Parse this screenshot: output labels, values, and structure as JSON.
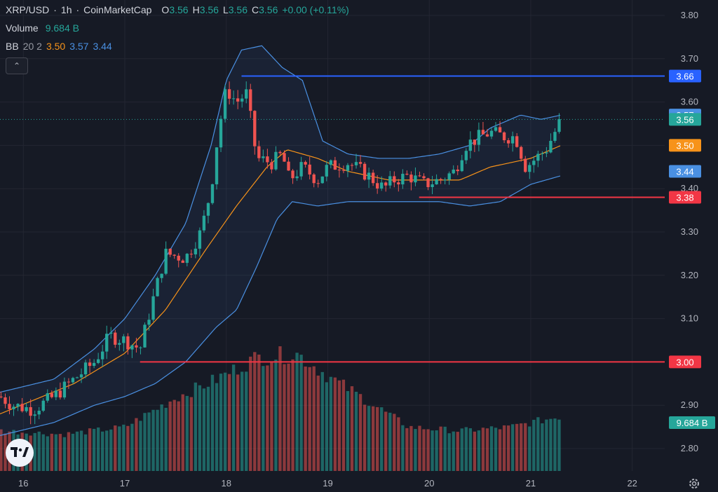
{
  "header": {
    "symbol": "XRP/USD",
    "interval": "1h",
    "source": "CoinMarketCap",
    "ohlc": [
      {
        "key": "O",
        "value": "3.56"
      },
      {
        "key": "H",
        "value": "3.56"
      },
      {
        "key": "L",
        "value": "3.56"
      },
      {
        "key": "C",
        "value": "3.56"
      }
    ],
    "change": "+0.00 (+0.11%)",
    "volume_label": "Volume",
    "volume_value": "9.684 B",
    "bb_label": "BB",
    "bb_params": "20 2",
    "bb_basis": "3.50",
    "bb_upper": "3.57",
    "bb_lower": "3.44"
  },
  "colors": {
    "background": "#161a25",
    "up": "#26a69a",
    "down": "#ef5350",
    "bb_basis": "#f7931a",
    "bb_band": "#4a90e2",
    "support": "#f23645",
    "resistance": "#2962ff",
    "axis_text": "#b2b5be"
  },
  "chart_data": {
    "type": "candlestick",
    "x_ticks": [
      {
        "label": "16",
        "day": 16
      },
      {
        "label": "17",
        "day": 17
      },
      {
        "label": "18",
        "day": 18
      },
      {
        "label": "19",
        "day": 19
      },
      {
        "label": "20",
        "day": 20
      },
      {
        "label": "21",
        "day": 21
      },
      {
        "label": "22",
        "day": 22
      }
    ],
    "xlim": [
      15.77,
      22.32
    ],
    "y_ticks": [
      "2.80",
      "2.90",
      "3.00",
      "3.10",
      "3.20",
      "3.30",
      "3.40",
      "3.50",
      "3.60",
      "3.70",
      "3.80"
    ],
    "ylim": [
      2.74,
      3.82
    ],
    "horizontal_lines": [
      {
        "name": "resistance",
        "value": 3.66,
        "label": "3.66",
        "x_start": 18.15,
        "color": "#2962ff"
      },
      {
        "name": "support-mid",
        "value": 3.38,
        "label": "3.38",
        "x_start": 19.9,
        "color": "#f23645"
      },
      {
        "name": "support-low",
        "value": 3.0,
        "label": "3.00",
        "x_start": 17.15,
        "color": "#f23645"
      }
    ],
    "price_labels": [
      {
        "name": "bb-upper",
        "value": 3.57,
        "label": "3.57",
        "color": "#4a90e2"
      },
      {
        "name": "last-price",
        "value": 3.56,
        "label": "3.56",
        "color": "#26a69a"
      },
      {
        "name": "bb-basis",
        "value": 3.5,
        "label": "3.50",
        "color": "#f7931a"
      },
      {
        "name": "bb-lower",
        "value": 3.44,
        "label": "3.44",
        "color": "#4a90e2"
      }
    ],
    "volume_label": "9.684 B",
    "anchors": {
      "close": [
        [
          15.77,
          2.92
        ],
        [
          15.9,
          2.9
        ],
        [
          16.1,
          2.89
        ],
        [
          16.3,
          2.92
        ],
        [
          16.5,
          2.96
        ],
        [
          16.7,
          3.0
        ],
        [
          16.85,
          3.06
        ],
        [
          17.0,
          3.05
        ],
        [
          17.15,
          3.03
        ],
        [
          17.25,
          3.12
        ],
        [
          17.4,
          3.25
        ],
        [
          17.6,
          3.24
        ],
        [
          17.75,
          3.3
        ],
        [
          17.85,
          3.4
        ],
        [
          17.92,
          3.53
        ],
        [
          18.0,
          3.63
        ],
        [
          18.1,
          3.6
        ],
        [
          18.2,
          3.62
        ],
        [
          18.3,
          3.47
        ],
        [
          18.45,
          3.46
        ],
        [
          18.55,
          3.48
        ],
        [
          18.62,
          3.42
        ],
        [
          18.75,
          3.45
        ],
        [
          18.9,
          3.42
        ],
        [
          19.0,
          3.45
        ],
        [
          19.2,
          3.46
        ],
        [
          19.4,
          3.43
        ],
        [
          19.55,
          3.4
        ],
        [
          19.65,
          3.42
        ],
        [
          19.8,
          3.43
        ],
        [
          19.95,
          3.41
        ],
        [
          20.1,
          3.42
        ],
        [
          20.25,
          3.44
        ],
        [
          20.35,
          3.5
        ],
        [
          20.5,
          3.52
        ],
        [
          20.6,
          3.53
        ],
        [
          20.75,
          3.52
        ],
        [
          20.85,
          3.52
        ],
        [
          20.95,
          3.45
        ],
        [
          21.05,
          3.47
        ],
        [
          21.15,
          3.49
        ],
        [
          21.3,
          3.56
        ]
      ],
      "volume": [
        [
          15.77,
          0.55
        ],
        [
          16.4,
          0.5
        ],
        [
          17.0,
          0.6
        ],
        [
          17.5,
          1.0
        ],
        [
          17.9,
          1.25
        ],
        [
          18.3,
          1.55
        ],
        [
          18.7,
          1.6
        ],
        [
          19.0,
          1.3
        ],
        [
          19.4,
          0.95
        ],
        [
          19.8,
          0.6
        ],
        [
          20.3,
          0.55
        ],
        [
          20.8,
          0.6
        ],
        [
          21.3,
          0.75
        ]
      ],
      "volume_max": 1.6,
      "bb_basis": [
        [
          15.77,
          2.88
        ],
        [
          16.5,
          2.95
        ],
        [
          17.0,
          3.02
        ],
        [
          17.4,
          3.12
        ],
        [
          17.8,
          3.26
        ],
        [
          18.1,
          3.36
        ],
        [
          18.4,
          3.45
        ],
        [
          18.6,
          3.49
        ],
        [
          18.9,
          3.47
        ],
        [
          19.2,
          3.44
        ],
        [
          19.6,
          3.42
        ],
        [
          20.0,
          3.42
        ],
        [
          20.3,
          3.42
        ],
        [
          20.6,
          3.45
        ],
        [
          21.0,
          3.47
        ],
        [
          21.3,
          3.5
        ]
      ],
      "bb_upper": [
        [
          15.77,
          2.93
        ],
        [
          16.3,
          2.96
        ],
        [
          16.7,
          3.03
        ],
        [
          17.0,
          3.1
        ],
        [
          17.3,
          3.2
        ],
        [
          17.6,
          3.32
        ],
        [
          17.85,
          3.5
        ],
        [
          18.0,
          3.65
        ],
        [
          18.15,
          3.72
        ],
        [
          18.35,
          3.73
        ],
        [
          18.55,
          3.68
        ],
        [
          18.75,
          3.65
        ],
        [
          18.95,
          3.51
        ],
        [
          19.2,
          3.48
        ],
        [
          19.5,
          3.47
        ],
        [
          19.8,
          3.47
        ],
        [
          20.1,
          3.48
        ],
        [
          20.4,
          3.5
        ],
        [
          20.6,
          3.54
        ],
        [
          20.9,
          3.57
        ],
        [
          21.1,
          3.56
        ],
        [
          21.3,
          3.57
        ]
      ],
      "bb_lower": [
        [
          15.77,
          2.83
        ],
        [
          16.3,
          2.86
        ],
        [
          16.7,
          2.9
        ],
        [
          17.0,
          2.92
        ],
        [
          17.3,
          2.95
        ],
        [
          17.6,
          3.0
        ],
        [
          17.9,
          3.08
        ],
        [
          18.1,
          3.12
        ],
        [
          18.3,
          3.22
        ],
        [
          18.5,
          3.33
        ],
        [
          18.65,
          3.37
        ],
        [
          18.9,
          3.36
        ],
        [
          19.2,
          3.37
        ],
        [
          19.5,
          3.37
        ],
        [
          19.8,
          3.37
        ],
        [
          20.1,
          3.37
        ],
        [
          20.4,
          3.36
        ],
        [
          20.7,
          3.37
        ],
        [
          21.0,
          3.41
        ],
        [
          21.3,
          3.43
        ]
      ]
    }
  }
}
